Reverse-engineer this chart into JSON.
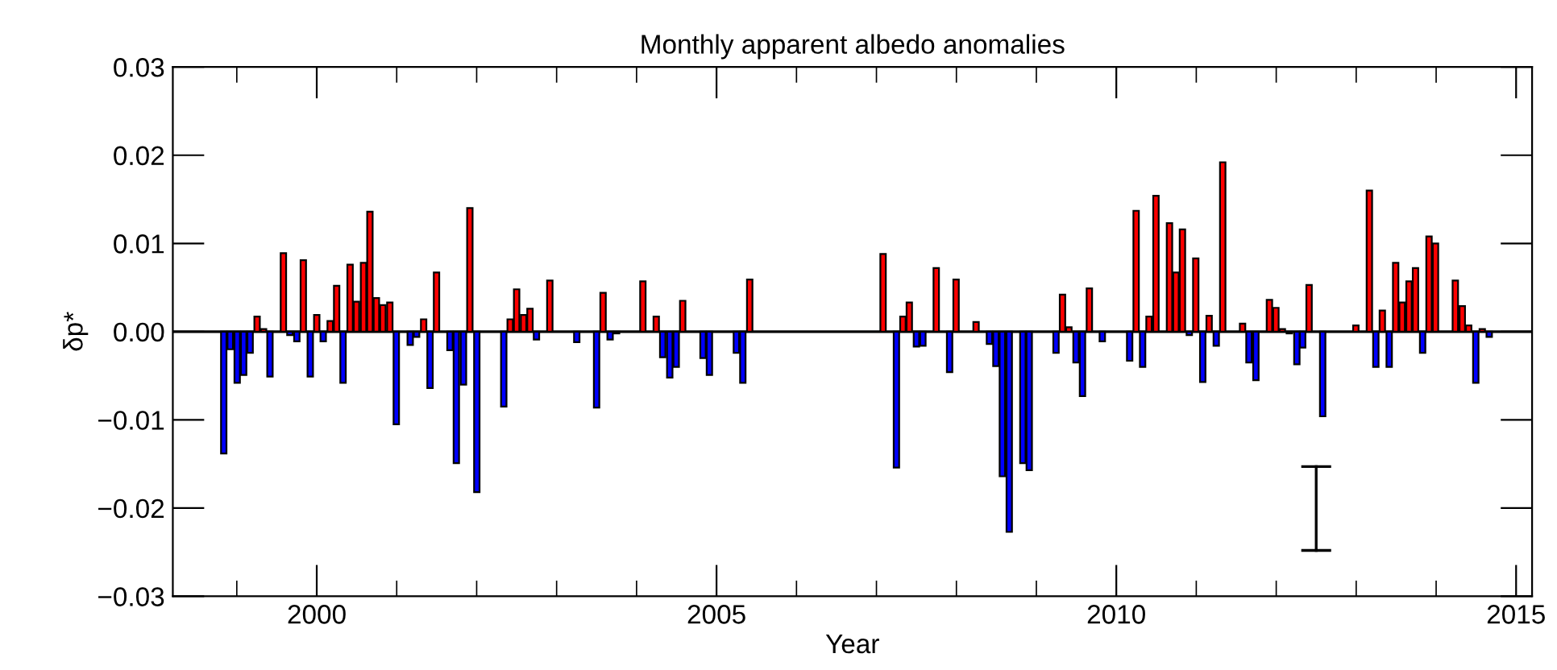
{
  "chart_data": {
    "type": "bar",
    "title": "Monthly apparent albedo anomalies",
    "xlabel": "Year",
    "ylabel": "δp*",
    "xlim": [
      1998.2,
      2015.2
    ],
    "ylim": [
      -0.03,
      0.03
    ],
    "xticks": [
      {
        "value": 1999,
        "label": null
      },
      2000,
      {
        "value": 2001,
        "label": null
      },
      {
        "value": 2002,
        "label": null
      },
      {
        "value": 2003,
        "label": null
      },
      {
        "value": 2004,
        "label": null
      },
      2005,
      {
        "value": 2006,
        "label": null
      },
      {
        "value": 2007,
        "label": null
      },
      {
        "value": 2008,
        "label": null
      },
      {
        "value": 2009,
        "label": null
      },
      2010,
      {
        "value": 2011,
        "label": null
      },
      {
        "value": 2012,
        "label": null
      },
      {
        "value": 2013,
        "label": null
      },
      {
        "value": 2014,
        "label": null
      },
      2015
    ],
    "yticks": [
      {
        "value": -0.03,
        "label": "−0.03"
      },
      {
        "value": -0.02,
        "label": "−0.02"
      },
      {
        "value": -0.01,
        "label": "−0.01"
      },
      {
        "value": 0,
        "label": "0.00"
      },
      {
        "value": 0.01,
        "label": "0.01"
      },
      {
        "value": 0.02,
        "label": "0.02"
      },
      {
        "value": 0.03,
        "label": "0.03"
      }
    ],
    "grid": false,
    "ref_lines": [
      {
        "axis": "y",
        "value": 0,
        "color": "#000000"
      }
    ],
    "series": [
      {
        "color": "#ff0000",
        "x": [
          1999.254,
          1999.335,
          1999.583,
          1999.832,
          2000.0,
          2000.168,
          2000.249,
          2000.417,
          2000.497,
          2000.585,
          2000.665,
          2000.746,
          2000.827,
          2000.914,
          2001.337,
          2001.498,
          2001.915,
          2002.419,
          2002.5,
          2002.587,
          2002.667,
          2002.915,
          2003.581,
          2004.079,
          2004.246,
          2004.577,
          2005.415,
          2007.083,
          2007.331,
          2007.411,
          2007.748,
          2007.996,
          2008.246,
          2009.327,
          2009.407,
          2009.663,
          2010.248,
          2010.409,
          2010.496,
          2010.665,
          2010.746,
          2010.827,
          2010.994,
          2011.161,
          2011.331,
          2011.579,
          2011.915,
          2011.996,
          2012.077,
          2012.411,
          2012.996,
          2013.165,
          2013.327,
          2013.494,
          2013.575,
          2013.661,
          2013.742,
          2013.911,
          2013.992,
          2014.24,
          2014.327,
          2014.407,
          2014.577
        ],
        "values": [
          0.0017,
          0.0003,
          0.0089,
          0.0081,
          0.0019,
          0.0012,
          0.0052,
          0.0076,
          0.0034,
          0.0078,
          0.0136,
          0.0038,
          0.003,
          0.0033,
          0.0014,
          0.0067,
          0.014,
          0.0014,
          0.0048,
          0.0019,
          0.0026,
          0.0058,
          0.0044,
          0.0057,
          0.0017,
          0.0035,
          0.0059,
          0.0088,
          0.0017,
          0.0033,
          0.0072,
          0.0059,
          0.0011,
          0.0042,
          0.0005,
          0.0049,
          0.0137,
          0.0017,
          0.0154,
          0.0123,
          0.0067,
          0.0116,
          0.0083,
          0.0018,
          0.0192,
          0.0009,
          0.0036,
          0.0027,
          0.0003,
          0.0053,
          0.0007,
          0.016,
          0.0024,
          0.0078,
          0.0033,
          0.0057,
          0.0072,
          0.0108,
          0.01,
          0.0058,
          0.0029,
          0.0007,
          0.0003
        ]
      },
      {
        "color": "#0000ff",
        "x": [
          1998.837,
          1998.918,
          1999.005,
          1999.086,
          1999.167,
          1999.415,
          1999.664,
          1999.751,
          1999.919,
          2000.081,
          2000.329,
          2000.995,
          2001.169,
          2001.249,
          2001.417,
          2001.666,
          2001.746,
          2001.835,
          2002.002,
          2002.339,
          2002.748,
          2003.252,
          2003.5,
          2003.669,
          2003.75,
          2004.327,
          2004.415,
          2004.496,
          2004.831,
          2004.911,
          2005.248,
          2005.329,
          2007.25,
          2007.5,
          2007.581,
          2007.915,
          2008.413,
          2008.494,
          2008.575,
          2008.661,
          2008.831,
          2008.911,
          2009.246,
          2009.496,
          2009.577,
          2009.825,
          2010.167,
          2010.329,
          2010.913,
          2011.081,
          2011.25,
          2011.659,
          2011.746,
          2012.164,
          2012.258,
          2012.331,
          2012.581,
          2013.246,
          2013.413,
          2013.831,
          2014.496,
          2014.664
        ],
        "values": [
          -0.0138,
          -0.002,
          -0.0058,
          -0.0049,
          -0.0024,
          -0.0051,
          -0.0004,
          -0.0011,
          -0.0051,
          -0.0011,
          -0.0058,
          -0.0105,
          -0.0015,
          -0.0006,
          -0.0064,
          -0.0021,
          -0.0149,
          -0.006,
          -0.0182,
          -0.0085,
          -0.0009,
          -0.0012,
          -0.0086,
          -0.0009,
          -0.0002,
          -0.0029,
          -0.0052,
          -0.004,
          -0.003,
          -0.0049,
          -0.0024,
          -0.0058,
          -0.0154,
          -0.0017,
          -0.0016,
          -0.0046,
          -0.0014,
          -0.0039,
          -0.0164,
          -0.0227,
          -0.0149,
          -0.0157,
          -0.0024,
          -0.0035,
          -0.0073,
          -0.0011,
          -0.0033,
          -0.004,
          -0.0004,
          -0.0057,
          -0.0016,
          -0.0035,
          -0.0055,
          -0.0002,
          -0.0037,
          -0.0018,
          -0.0096,
          -0.004,
          -0.004,
          -0.0024,
          -0.0058,
          -0.0006
        ]
      },
      {
        "type": "line",
        "color": "#000000",
        "x": [
          2012.5,
          2012.5
        ],
        "values": [
          -0.0153,
          -0.0248
        ]
      }
    ]
  }
}
